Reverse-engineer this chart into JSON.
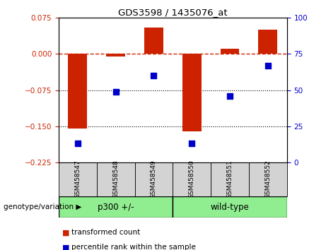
{
  "title": "GDS3598 / 1435076_at",
  "samples": [
    "GSM458547",
    "GSM458548",
    "GSM458549",
    "GSM458550",
    "GSM458551",
    "GSM458552"
  ],
  "red_values": [
    -0.155,
    -0.005,
    0.055,
    -0.16,
    0.01,
    0.05
  ],
  "blue_values": [
    13,
    49,
    60,
    13,
    46,
    67
  ],
  "ylim_left": [
    -0.225,
    0.075
  ],
  "ylim_right": [
    0,
    100
  ],
  "yticks_left": [
    0.075,
    0,
    -0.075,
    -0.15,
    -0.225
  ],
  "yticks_right": [
    100,
    75,
    50,
    25,
    0
  ],
  "hlines_dotted": [
    -0.075,
    -0.15
  ],
  "hline_dashed": 0,
  "groups": [
    {
      "label": "p300 +/-",
      "start": 0,
      "end": 3,
      "color": "#90ee90"
    },
    {
      "label": "wild-type",
      "start": 3,
      "end": 6,
      "color": "#90ee90"
    }
  ],
  "group_label": "genotype/variation",
  "bar_color": "#cc2200",
  "scatter_color": "#0000cc",
  "bar_width": 0.5,
  "legend_items": [
    {
      "label": "transformed count",
      "color": "#cc2200"
    },
    {
      "label": "percentile rank within the sample",
      "color": "#0000cc"
    }
  ],
  "background_color": "#ffffff",
  "plot_bg_color": "#ffffff",
  "tick_color_left": "#cc2200",
  "tick_color_right": "#0000cc",
  "label_box_color": "#d3d3d3",
  "figsize": [
    4.61,
    3.54
  ],
  "dpi": 100
}
